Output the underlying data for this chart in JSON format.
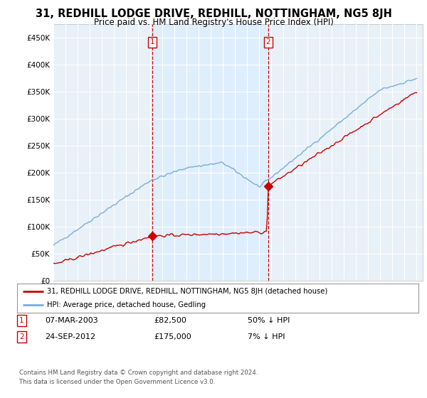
{
  "title": "31, REDHILL LODGE DRIVE, REDHILL, NOTTINGHAM, NG5 8JH",
  "subtitle": "Price paid vs. HM Land Registry's House Price Index (HPI)",
  "legend_line1": "31, REDHILL LODGE DRIVE, REDHILL, NOTTINGHAM, NG5 8JH (detached house)",
  "legend_line2": "HPI: Average price, detached house, Gedling",
  "transaction1_date": "07-MAR-2003",
  "transaction1_price": 82500,
  "transaction1_label": "£82,500",
  "transaction1_text": "50% ↓ HPI",
  "transaction2_date": "24-SEP-2012",
  "transaction2_price": 175000,
  "transaction2_label": "£175,000",
  "transaction2_text": "7% ↓ HPI",
  "footer1": "Contains HM Land Registry data © Crown copyright and database right 2024.",
  "footer2": "This data is licensed under the Open Government Licence v3.0.",
  "red_color": "#cc0000",
  "blue_color": "#7aaddc",
  "shade_color": "#ddeeff",
  "background_color": "#ffffff",
  "plot_bg_color": "#e8f0f8",
  "grid_color": "#ffffff",
  "ylim": [
    0,
    475000
  ],
  "yticks": [
    0,
    50000,
    100000,
    150000,
    200000,
    250000,
    300000,
    350000,
    400000,
    450000
  ],
  "t1_year": 2003.18,
  "t2_year": 2012.72
}
